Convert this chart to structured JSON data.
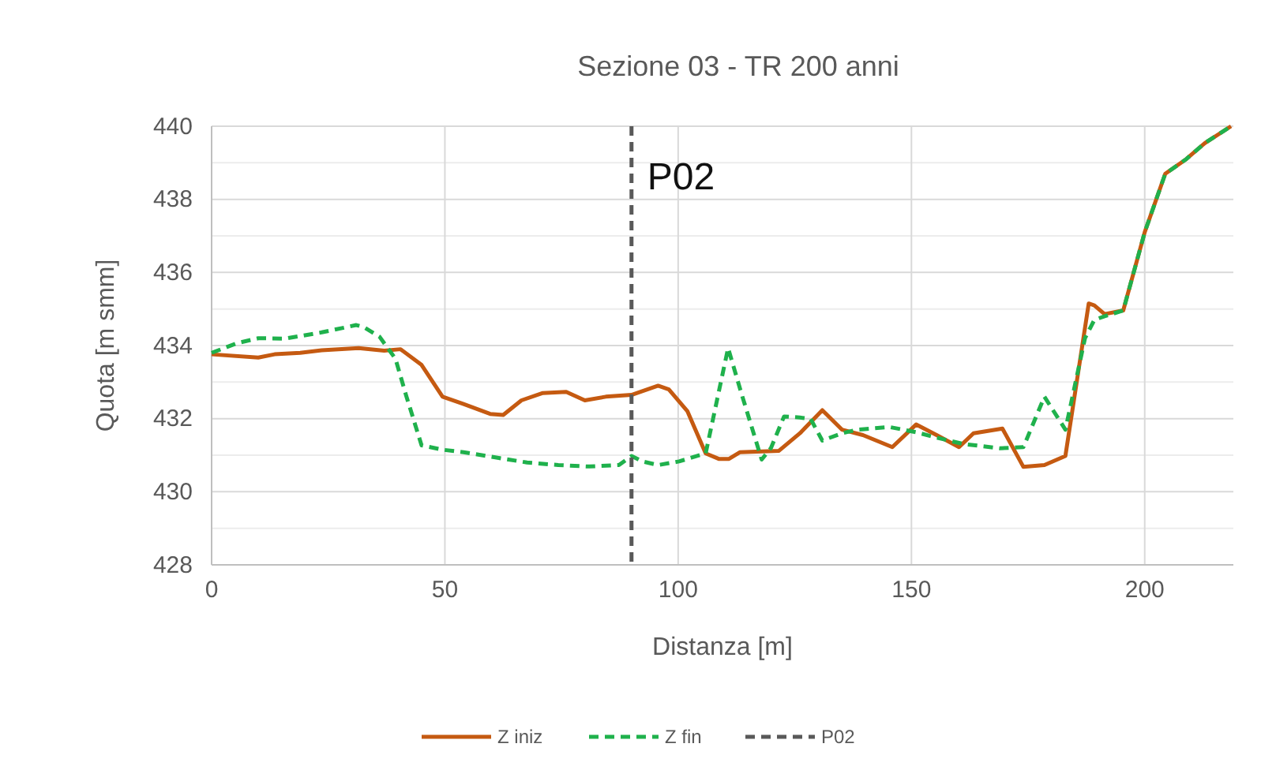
{
  "chart_data": {
    "type": "line",
    "title": "Sezione 03 - TR 200 anni",
    "xlabel": "Distanza [m]",
    "ylabel": "Quota [m smm]",
    "xlim": [
      0,
      219
    ],
    "xticks": [
      0,
      50,
      100,
      150,
      200
    ],
    "ylim": [
      428,
      440
    ],
    "yticks": [
      428,
      {
        "value": 429,
        "label": null
      },
      430,
      {
        "value": 431,
        "label": null
      },
      432,
      {
        "value": 433,
        "label": null
      },
      434,
      {
        "value": 435,
        "label": null
      },
      436,
      {
        "value": 437,
        "label": null
      },
      438,
      {
        "value": 439,
        "label": null
      },
      440
    ],
    "grid": true,
    "legend": "bottom",
    "marker": "none",
    "series": [
      {
        "name": "Z iniz",
        "color": "#c55a11",
        "line_style": "solid",
        "x": [
          0,
          10,
          13.5,
          19,
          23.6,
          31.5,
          37,
          40.5,
          45,
          49.5,
          54,
          59.7,
          62.5,
          66.4,
          71,
          76,
          80,
          84.5,
          90,
          95.7,
          98,
          102,
          105.9,
          108.7,
          110.9,
          113.2,
          121.6,
          126.1,
          130.9,
          135.1,
          139.6,
          145.9,
          151,
          155.4,
          160.2,
          163.3,
          169.5,
          174,
          178.5,
          183,
          188,
          189.2,
          191.4,
          195.4,
          200,
          204.4,
          208.9,
          212.9,
          218.5
        ],
        "values": [
          433.76,
          433.67,
          433.76,
          433.8,
          433.87,
          433.93,
          433.86,
          433.9,
          433.47,
          432.6,
          432.4,
          432.13,
          432.1,
          432.5,
          432.7,
          432.73,
          432.5,
          432.6,
          432.65,
          432.9,
          432.8,
          432.2,
          431.05,
          430.9,
          430.9,
          431.08,
          431.12,
          431.6,
          432.23,
          431.7,
          431.55,
          431.22,
          431.84,
          431.55,
          431.22,
          431.6,
          431.73,
          430.68,
          430.73,
          430.98,
          435.15,
          435.1,
          434.86,
          434.96,
          437.1,
          438.7,
          439.1,
          439.54,
          440
        ]
      },
      {
        "name": "Z fin",
        "color": "#1fb14c",
        "line_style": "dashed",
        "x": [
          0,
          5.6,
          10,
          15.8,
          23.6,
          31,
          32.7,
          36,
          39.4,
          41.7,
          45,
          49.5,
          54,
          60.8,
          67.6,
          74.3,
          81,
          87.3,
          90,
          92.3,
          95.7,
          100.2,
          105.9,
          110.7,
          113.7,
          117.9,
          119.9,
          122.7,
          126.1,
          128.4,
          130.9,
          135.1,
          138.5,
          145.3,
          151,
          155.4,
          161,
          168.9,
          174,
          178.5,
          183,
          187.2,
          189.2,
          191.4,
          195.4,
          200,
          204.4,
          208.9,
          212.9,
          218.5
        ],
        "values": [
          433.8,
          434.07,
          434.2,
          434.19,
          434.36,
          434.56,
          434.5,
          434.24,
          433.64,
          432.63,
          431.27,
          431.15,
          431.08,
          430.94,
          430.8,
          430.73,
          430.69,
          430.73,
          430.98,
          430.83,
          430.73,
          430.83,
          431.05,
          433.93,
          432.63,
          430.88,
          431.2,
          432.06,
          432.03,
          431.99,
          431.4,
          431.6,
          431.7,
          431.77,
          431.63,
          431.48,
          431.31,
          431.19,
          431.22,
          432.6,
          431.7,
          434.2,
          434.7,
          434.8,
          434.96,
          437.1,
          438.7,
          439.1,
          439.54,
          440
        ]
      }
    ],
    "ref_lines": [
      {
        "axis": "x",
        "value": 90,
        "label": "P02",
        "color": "#595959",
        "line_style": "dashed"
      }
    ]
  }
}
